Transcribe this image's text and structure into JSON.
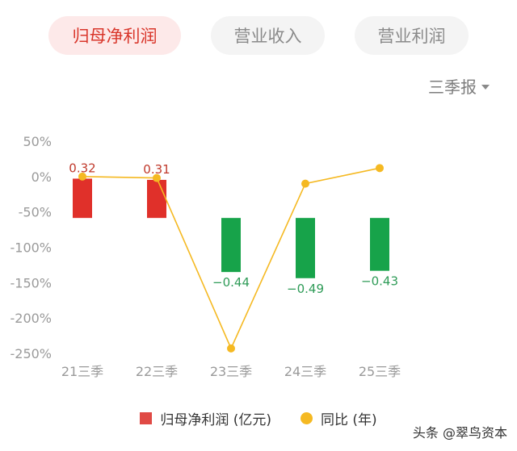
{
  "tabs": [
    {
      "label": "归母净利润",
      "active": true
    },
    {
      "label": "营业收入",
      "active": false
    },
    {
      "label": "营业利润",
      "active": false
    }
  ],
  "period_selector": {
    "label": "三季报",
    "icon": "caret-down-icon"
  },
  "colors": {
    "positive": "#e0302a",
    "negative": "#17a34a",
    "line": "#f5b922",
    "accent": "#d9362b"
  },
  "chart_data": {
    "type": "bar",
    "categories": [
      "21三季",
      "22三季",
      "23三季",
      "24三季",
      "25三季"
    ],
    "series": [
      {
        "name": "归母净利润 (亿元)",
        "type": "bar",
        "values": [
          0.32,
          0.31,
          -0.44,
          -0.49,
          -0.43
        ],
        "labels": [
          "0.32",
          "0.31",
          "−0.44",
          "−0.49",
          "−0.43"
        ]
      },
      {
        "name": "同比 (年)",
        "type": "line",
        "values": [
          0,
          -2,
          -243,
          -10,
          12
        ]
      }
    ],
    "y_ticks": [
      "50%",
      "0%",
      "-50%",
      "-100%",
      "-150%",
      "-200%",
      "-250%"
    ],
    "y_tick_values": [
      50,
      0,
      -50,
      -100,
      -150,
      -200,
      -250
    ],
    "ylim": [
      -250,
      50
    ],
    "bar_range": [
      0.5,
      -0.8
    ],
    "grid": false,
    "legend": "bottom"
  },
  "legend": {
    "bar_label": "归母净利润 (亿元)",
    "line_label": "同比 (年)"
  },
  "watermark": "头条 @翠鸟资本"
}
